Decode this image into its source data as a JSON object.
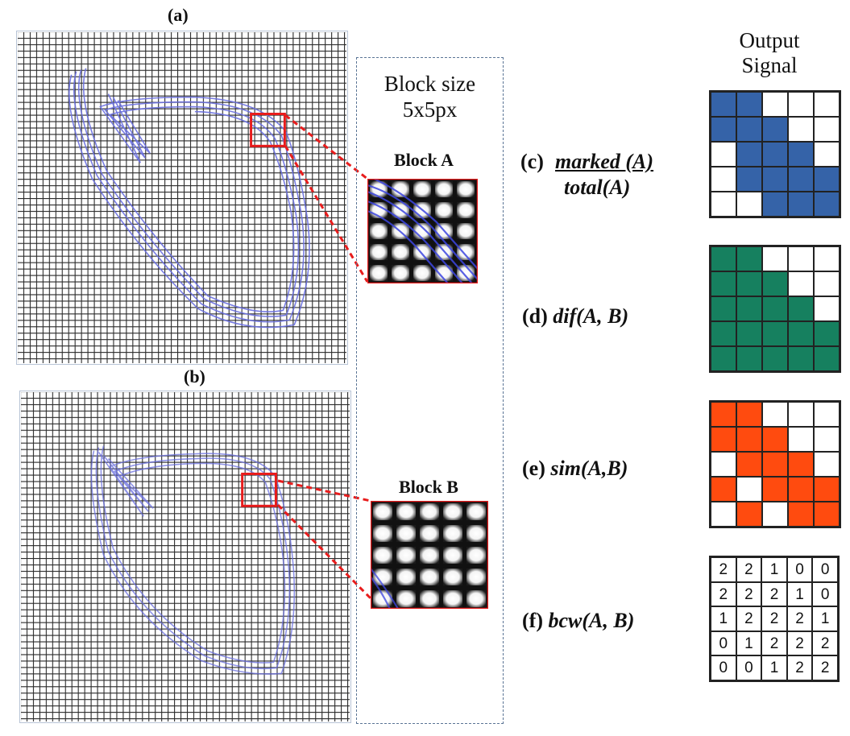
{
  "panels": {
    "a_label": "(a)",
    "b_label": "(b)"
  },
  "block_size": {
    "line1": "Block size",
    "line2": "5x5px"
  },
  "blocks": {
    "a_title": "Block A",
    "b_title": "Block B"
  },
  "output": {
    "title_line1": "Output",
    "title_line2": "Signal"
  },
  "formulas": {
    "c_prefix": "(c)",
    "c_numerator": "marked (A)",
    "c_denominator": "total(A)",
    "d_prefix": "(d)",
    "d_expr": "dif(A, B)",
    "e_prefix": "(e)",
    "e_expr": "sim(A,B)",
    "f_prefix": "(f)",
    "f_expr": "bcw(A, B)"
  },
  "colors": {
    "marked": "#3563a8",
    "dif": "#16805f",
    "sim": "#ff4b0f",
    "empty": "#ffffff",
    "highlight": "#e81c1c",
    "stroke": "#6a6fe0"
  },
  "grids": {
    "c": [
      [
        1,
        1,
        0,
        0,
        0
      ],
      [
        1,
        1,
        1,
        0,
        0
      ],
      [
        0,
        1,
        1,
        1,
        0
      ],
      [
        0,
        1,
        1,
        1,
        1
      ],
      [
        0,
        0,
        1,
        1,
        1
      ]
    ],
    "d": [
      [
        1,
        1,
        0,
        0,
        0
      ],
      [
        1,
        1,
        1,
        0,
        0
      ],
      [
        1,
        1,
        1,
        1,
        0
      ],
      [
        1,
        1,
        1,
        1,
        1
      ],
      [
        1,
        1,
        1,
        1,
        1
      ]
    ],
    "e": [
      [
        1,
        1,
        0,
        0,
        0
      ],
      [
        1,
        1,
        1,
        0,
        0
      ],
      [
        0,
        1,
        1,
        1,
        0
      ],
      [
        1,
        0,
        1,
        1,
        1
      ],
      [
        0,
        1,
        0,
        1,
        1
      ]
    ],
    "f": [
      [
        "2",
        "2",
        "1",
        "0",
        "0"
      ],
      [
        "2",
        "2",
        "2",
        "1",
        "0"
      ],
      [
        "1",
        "2",
        "2",
        "2",
        "1"
      ],
      [
        "0",
        "1",
        "2",
        "2",
        "2"
      ],
      [
        "0",
        "0",
        "1",
        "2",
        "2"
      ]
    ]
  }
}
